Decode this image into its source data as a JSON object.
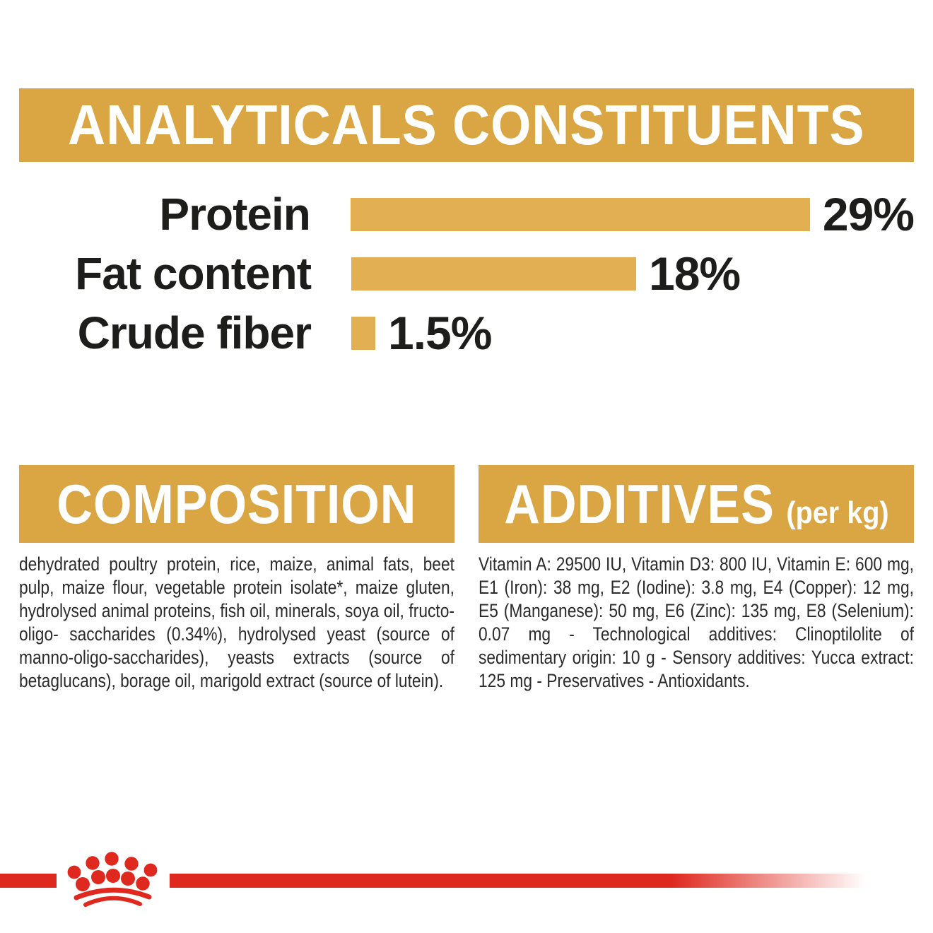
{
  "chart_data": {
    "type": "bar",
    "orientation": "horizontal",
    "title": "ANALYTICALS CONSTITUENTS",
    "categories": [
      "Protein",
      "Fat content",
      "Crude fiber"
    ],
    "values": [
      29,
      18,
      1.5
    ],
    "value_labels": [
      "29%",
      "18%",
      "1.5%"
    ],
    "unit": "percent",
    "xlim": [
      0,
      29
    ],
    "bar_color": "#E2AF53",
    "grid": false,
    "legend": false
  },
  "composition": {
    "title": "COMPOSITION",
    "body": "dehydrated poultry protein, rice, maize, animal fats, beet pulp, maize flour, vegetable protein isolate*, maize gluten, hydrolysed animal proteins, fish oil, minerals, soya oil, fructo-oligo- saccharides (0.34%), hydrolysed yeast (source of manno-oligo-saccharides), yeasts extracts (source of betaglucans), borage oil, marigold extract (source of lutein)."
  },
  "additives": {
    "title": "ADDITIVES",
    "title_suffix": "(per kg)",
    "body": "Vitamin A: 29500 IU, Vitamin D3: 800 IU, Vitamin E: 600 mg, E1 (Iron): 38 mg, E2 (Iodine): 3.8 mg, E4 (Copper): 12 mg, E5 (Manganese): 50 mg, E6 (Zinc): 135 mg, E8 (Selenium): 0.07 mg - Technological additives: Clinoptilolite of sedimentary origin: 10 g - Sensory additives: Yucca extract: 125 mg - Preservatives - Antioxidants.",
    "footnote_marker": "*"
  },
  "footer": {
    "logo": "royal-canin-crown-icon"
  },
  "colors": {
    "header_gold": "#D9A643",
    "bar_gold": "#E2AF53",
    "brand_red": "#DF281E",
    "heading_text": "#FFFFFF",
    "label_text": "#1D1D1B",
    "body_text": "#2B2B2B",
    "background": "#FFFFFF"
  }
}
